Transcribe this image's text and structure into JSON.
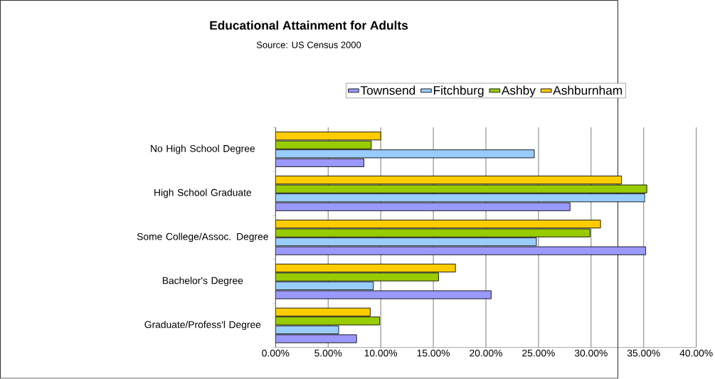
{
  "chart_data": {
    "type": "bar",
    "orientation": "horizontal",
    "title": "Educational Attainment for Adults",
    "subtitle": "Source:  US Census 2000",
    "categories": [
      "No High School Degree",
      "High School Graduate",
      "Some College/Assoc. Degree",
      "Bachelor's Degree",
      "Graduate/Profess'l Degree"
    ],
    "series": [
      {
        "name": "Townsend",
        "color": "#9999ff",
        "values": [
          8.4,
          28.0,
          35.2,
          20.5,
          7.7
        ]
      },
      {
        "name": "Fitchburg",
        "color": "#99ccff",
        "values": [
          24.6,
          35.1,
          24.8,
          9.3,
          6.0
        ]
      },
      {
        "name": "Ashby",
        "color": "#99cc00",
        "values": [
          9.1,
          35.3,
          29.9,
          15.5,
          9.9
        ]
      },
      {
        "name": "Ashburnham",
        "color": "#ffcc00",
        "values": [
          10.0,
          32.9,
          30.9,
          17.1,
          9.0
        ]
      }
    ],
    "xlim": [
      0,
      40
    ],
    "xticks": [
      {
        "value": 0,
        "label": "0.00%"
      },
      {
        "value": 5,
        "label": "5.00%"
      },
      {
        "value": 10,
        "label": "10.00%"
      },
      {
        "value": 15,
        "label": "15.00%"
      },
      {
        "value": 20,
        "label": "20.00%"
      },
      {
        "value": 25,
        "label": "25.00%"
      },
      {
        "value": 30,
        "label": "30.00%"
      },
      {
        "value": 35,
        "label": "35.00%"
      },
      {
        "value": 40,
        "label": "40.00%"
      }
    ],
    "grid": "x",
    "legend": "top"
  }
}
